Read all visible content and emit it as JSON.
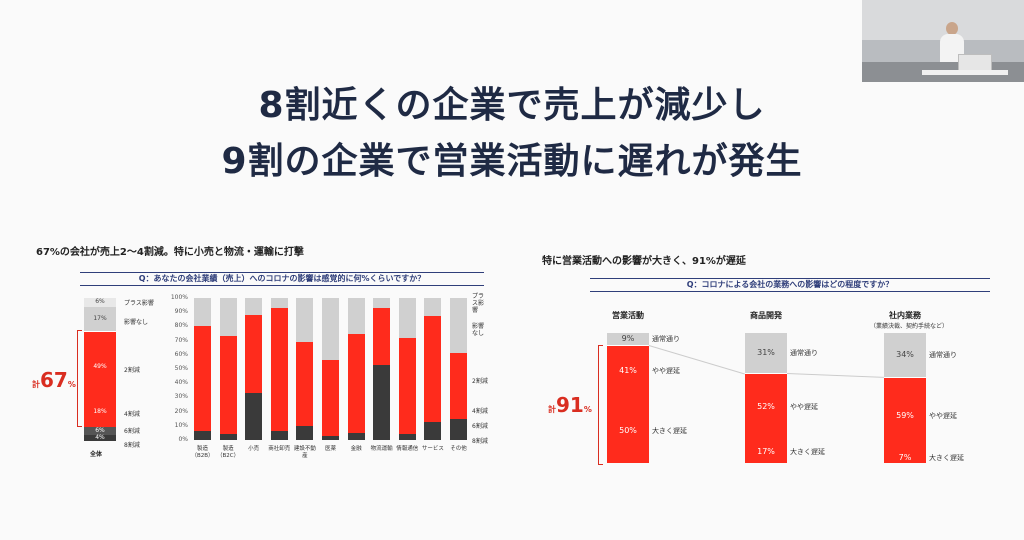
{
  "title": {
    "line1": "8割近くの企業で売上が減少し",
    "line2": "9割の企業で営業活動に遅れが発生"
  },
  "left": {
    "heading": "67%の会社が売上2～4割減。特に小売と物流・運輸に打撃",
    "question": "Q：あなたの会社業績（売上）へのコロナの影響は感覚的に何%くらいですか？",
    "total_big": "67",
    "total_prefix": "計",
    "total_suffix": "%",
    "legend_labels": [
      "プラス影響",
      "影響なし",
      "2割減",
      "4割減",
      "6割減",
      "8割減"
    ],
    "right_legend": [
      "プラス影響",
      "影響なし",
      "2割減",
      "4割減",
      "6割減",
      "8割減"
    ],
    "y_ticks": [
      "100%",
      "90%",
      "80%",
      "70%",
      "60%",
      "50%",
      "40%",
      "30%",
      "20%",
      "10%",
      "0%"
    ],
    "overall_label": "全体",
    "overall_value_labels": [
      "6%",
      "17%",
      "49%",
      "18%",
      "6%",
      "4%"
    ]
  },
  "right": {
    "heading": "特に営業活動への影響が大きく、91%が遅延",
    "question": "Q：コロナによる会社の業務への影響はどの程度ですか？",
    "total_big": "91",
    "total_prefix": "計",
    "total_suffix": "%",
    "subnote": "（業績決裁、契約手続など）"
  },
  "webcam": {
    "icon": "person-at-laptop"
  },
  "colors": {
    "red": "#ff2b1c",
    "light": "#d0d0d0",
    "lighter": "#e8e8e8",
    "dark": "#3a3a3a",
    "navy": "#1f2a44"
  },
  "chart_data": [
    {
      "type": "bar",
      "title": "Q：あなたの会社業績（売上）へのコロナの影響は感覚的に何%くらいですか？",
      "categories": [
        "全体"
      ],
      "series": [
        {
          "name": "8割減",
          "values": [
            4
          ]
        },
        {
          "name": "6割減",
          "values": [
            6
          ]
        },
        {
          "name": "4割減",
          "values": [
            18
          ]
        },
        {
          "name": "2割減",
          "values": [
            49
          ]
        },
        {
          "name": "影響なし",
          "values": [
            17
          ]
        },
        {
          "name": "プラス影響",
          "values": [
            6
          ]
        }
      ]
    },
    {
      "type": "bar",
      "categories": [
        "製造（B2B）",
        "製造（B2C）",
        "小売",
        "商社卸売",
        "建設不動産",
        "医薬",
        "金融",
        "物流運輸",
        "情報通信",
        "サービス",
        "その他"
      ],
      "ylim": [
        0,
        100
      ],
      "series": [
        {
          "name": "dark",
          "values": [
            6,
            4,
            33,
            6,
            10,
            3,
            5,
            53,
            4,
            13,
            15
          ]
        },
        {
          "name": "red",
          "values": [
            74,
            69,
            55,
            87,
            59,
            53,
            70,
            40,
            68,
            74,
            46
          ]
        },
        {
          "name": "gray",
          "values": [
            20,
            27,
            12,
            7,
            31,
            44,
            25,
            7,
            28,
            13,
            39
          ]
        }
      ]
    },
    {
      "type": "bar",
      "title": "Q：コロナによる会社の業務への影響はどの程度ですか？",
      "categories": [
        "営業活動",
        "商品開発",
        "社内業務"
      ],
      "series": [
        {
          "name": "大きく遅延",
          "values": [
            50,
            17,
            7
          ]
        },
        {
          "name": "やや遅延",
          "values": [
            41,
            52,
            59
          ]
        },
        {
          "name": "通常通り",
          "values": [
            9,
            31,
            34
          ]
        }
      ]
    }
  ]
}
